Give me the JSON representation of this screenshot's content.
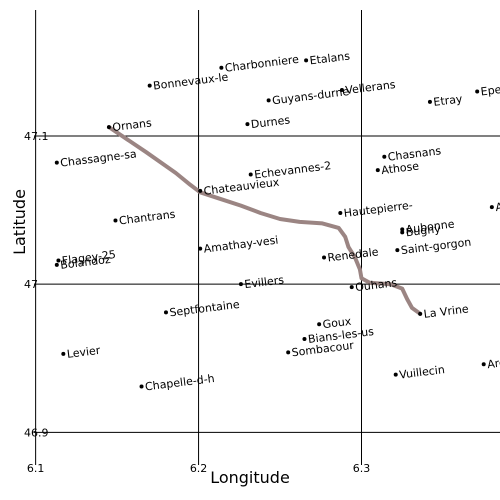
{
  "map": {
    "xlabel": "Longitude",
    "ylabel": "Latitude",
    "xlim": [
      6.099,
      6.385
    ],
    "ylim": [
      46.878,
      47.185
    ],
    "x_ticks": [
      {
        "value": 6.1,
        "label": "6.1"
      },
      {
        "value": 6.2,
        "label": "6.2"
      },
      {
        "value": 6.3,
        "label": "6.3"
      }
    ],
    "y_ticks": [
      {
        "value": 46.9,
        "label": "46.9"
      },
      {
        "value": 47.0,
        "label": "47"
      },
      {
        "value": 47.1,
        "label": "47.1"
      }
    ],
    "grid": true,
    "route": {
      "color": "#9b8583",
      "points": [
        [
          6.145,
          47.106
        ],
        [
          6.168,
          47.089
        ],
        [
          6.186,
          47.075
        ],
        [
          6.195,
          47.067
        ],
        [
          6.201,
          47.062
        ],
        [
          6.212,
          47.058
        ],
        [
          6.226,
          47.053
        ],
        [
          6.238,
          47.048
        ],
        [
          6.25,
          47.044
        ],
        [
          6.262,
          47.042
        ],
        [
          6.276,
          47.041
        ],
        [
          6.286,
          47.038
        ],
        [
          6.29,
          47.032
        ],
        [
          6.292,
          47.025
        ],
        [
          6.296,
          47.018
        ],
        [
          6.299,
          47.01
        ],
        [
          6.3,
          47.004
        ],
        [
          6.305,
          47.001
        ],
        [
          6.318,
          47.0
        ],
        [
          6.325,
          46.997
        ],
        [
          6.328,
          46.99
        ],
        [
          6.331,
          46.984
        ],
        [
          6.336,
          46.98
        ]
      ]
    },
    "places": [
      {
        "name": "Ornans",
        "lon": 6.145,
        "lat": 47.106
      },
      {
        "name": "Bonnevaux-le",
        "lon": 6.17,
        "lat": 47.134
      },
      {
        "name": "Charbonniere",
        "lon": 6.214,
        "lat": 47.146
      },
      {
        "name": "Etalans",
        "lon": 6.266,
        "lat": 47.151
      },
      {
        "name": "Guyans-durne",
        "lon": 6.243,
        "lat": 47.124
      },
      {
        "name": "Vellerans",
        "lon": 6.288,
        "lat": 47.131
      },
      {
        "name": "Etray",
        "lon": 6.342,
        "lat": 47.123
      },
      {
        "name": "Epenoy",
        "lon": 6.371,
        "lat": 47.13
      },
      {
        "name": "Durnes",
        "lon": 6.23,
        "lat": 47.108
      },
      {
        "name": "Chassagne-sa",
        "lon": 6.113,
        "lat": 47.082
      },
      {
        "name": "Chasnans",
        "lon": 6.314,
        "lat": 47.086
      },
      {
        "name": "Athose",
        "lon": 6.31,
        "lat": 47.077
      },
      {
        "name": "Echevannes-2",
        "lon": 6.232,
        "lat": 47.074
      },
      {
        "name": "Chateauvieux",
        "lon": 6.201,
        "lat": 47.063
      },
      {
        "name": "Hautepierre-",
        "lon": 6.287,
        "lat": 47.048
      },
      {
        "name": "Arc",
        "lon": 6.38,
        "lat": 47.052
      },
      {
        "name": "Chantrans",
        "lon": 6.149,
        "lat": 47.043
      },
      {
        "name": "Aubonne",
        "lon": 6.325,
        "lat": 47.037
      },
      {
        "name": "Bugny",
        "lon": 6.325,
        "lat": 47.035
      },
      {
        "name": "Saint-gorgon",
        "lon": 6.322,
        "lat": 47.023
      },
      {
        "name": "Amathay-vesi",
        "lon": 6.201,
        "lat": 47.024
      },
      {
        "name": "Flagey-25",
        "lon": 6.114,
        "lat": 47.016
      },
      {
        "name": "Bolandoz",
        "lon": 6.113,
        "lat": 47.013
      },
      {
        "name": "Renedale",
        "lon": 6.277,
        "lat": 47.018
      },
      {
        "name": "Evillers",
        "lon": 6.226,
        "lat": 47.0
      },
      {
        "name": "Ouhans",
        "lon": 6.294,
        "lat": 46.998
      },
      {
        "name": "Septfontaine",
        "lon": 6.18,
        "lat": 46.981
      },
      {
        "name": "La Vrine",
        "lon": 6.336,
        "lat": 46.98
      },
      {
        "name": "Goux",
        "lon": 6.274,
        "lat": 46.973
      },
      {
        "name": "Bians-les-us",
        "lon": 6.265,
        "lat": 46.963
      },
      {
        "name": "Sombacour",
        "lon": 6.255,
        "lat": 46.954
      },
      {
        "name": "Levier",
        "lon": 6.117,
        "lat": 46.953
      },
      {
        "name": "Arc",
        "lon": 6.375,
        "lat": 46.946
      },
      {
        "name": "Vuillecin",
        "lon": 6.321,
        "lat": 46.939
      },
      {
        "name": "Chapelle-d-h",
        "lon": 6.165,
        "lat": 46.931
      }
    ]
  }
}
